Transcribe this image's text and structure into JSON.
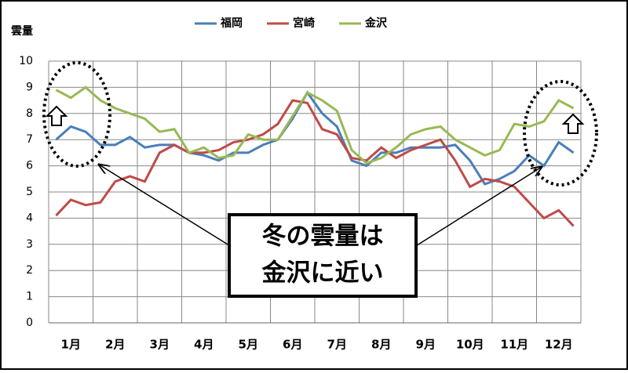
{
  "chart_data": {
    "type": "line",
    "y_label": "雲量",
    "categories": [
      null,
      "1月",
      null,
      null,
      "2月",
      null,
      null,
      "3月",
      null,
      null,
      "4月",
      null,
      null,
      "5月",
      null,
      null,
      "6月",
      null,
      null,
      "7月",
      null,
      null,
      "8月",
      null,
      null,
      "9月",
      null,
      null,
      "10月",
      null,
      null,
      "11月",
      null,
      null,
      "12月",
      null
    ],
    "series": [
      {
        "name": "福岡",
        "color": "#4a7ebb",
        "values": [
          7.0,
          7.5,
          7.3,
          6.8,
          6.8,
          7.1,
          6.7,
          6.8,
          6.8,
          6.5,
          6.4,
          6.2,
          6.5,
          6.5,
          6.8,
          7.0,
          7.8,
          8.8,
          8.0,
          7.5,
          6.2,
          6.0,
          6.5,
          6.5,
          6.7,
          6.7,
          6.7,
          6.8,
          6.2,
          5.3,
          5.5,
          5.8,
          6.4,
          6.0,
          6.9,
          6.5
        ]
      },
      {
        "name": "宮崎",
        "color": "#be4b48",
        "values": [
          4.1,
          4.7,
          4.5,
          4.6,
          5.4,
          5.6,
          5.4,
          6.5,
          6.8,
          6.5,
          6.5,
          6.6,
          6.9,
          7.0,
          7.2,
          7.6,
          8.5,
          8.4,
          7.4,
          7.2,
          6.3,
          6.2,
          6.7,
          6.3,
          6.6,
          6.8,
          7.0,
          6.2,
          5.2,
          5.5,
          5.4,
          5.2,
          4.6,
          4.0,
          4.3,
          3.7
        ]
      },
      {
        "name": "金沢",
        "color": "#98b954",
        "values": [
          8.9,
          8.6,
          9.0,
          8.5,
          8.2,
          8.0,
          7.8,
          7.3,
          7.4,
          6.5,
          6.7,
          6.3,
          6.4,
          7.2,
          7.0,
          7.0,
          7.9,
          8.8,
          8.5,
          8.1,
          6.6,
          6.1,
          6.3,
          6.7,
          7.2,
          7.4,
          7.5,
          7.0,
          6.7,
          6.4,
          6.6,
          7.6,
          7.5,
          7.7,
          8.5,
          8.2
        ]
      }
    ],
    "ylim": [
      0,
      10
    ],
    "yticks": [
      0,
      1,
      2,
      3,
      4,
      5,
      6,
      7,
      8,
      9,
      10
    ],
    "grid": true,
    "annotation": [
      "冬の雲量は",
      "金沢に近い"
    ]
  }
}
